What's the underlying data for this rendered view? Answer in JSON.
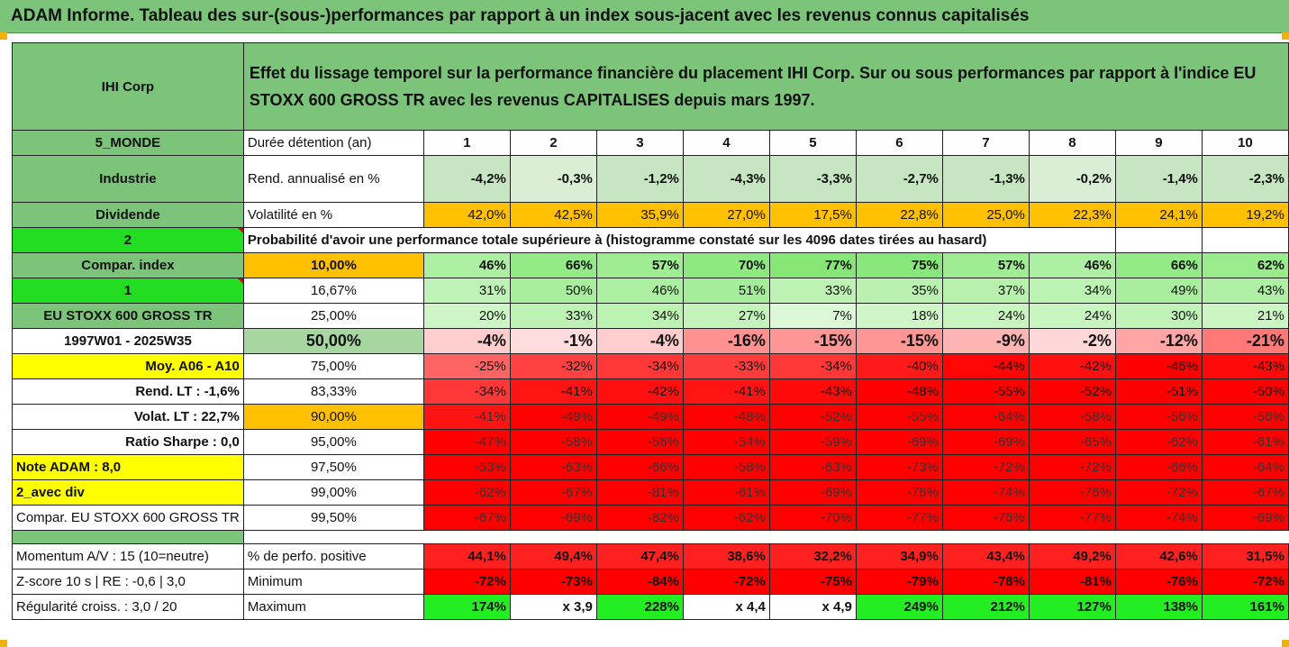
{
  "title": "ADAM Informe. Tableau des sur-(sous-)performances par rapport à un index sous-jacent avec les revenus connus capitalisés",
  "company": "IHI Corp",
  "description": "Effet du lissage temporel sur la performance financière du placement IHI Corp. Sur ou sous performances par rapport à l'indice EU STOXX 600 GROSS TR avec les revenus CAPITALISES depuis mars 1997.",
  "left": {
    "zone": "5_MONDE",
    "sector": "Industrie",
    "dividend": "Dividende",
    "selector1": "2",
    "compar": "Compar. index",
    "selector2": "1",
    "index_name": "EU STOXX 600 GROSS TR",
    "period": "1997W01 - 2025W35",
    "moy": "Moy. A06 - A10",
    "rend_lt": "Rend. LT :   -1,6%",
    "volat_lt": "Volat. LT :   22,7%",
    "sharpe": "Ratio Sharpe :   0,0",
    "note": "Note ADAM : 8,0",
    "avec_div": "2_avec div",
    "compar_full": "Compar. EU STOXX 600 GROSS TR",
    "momentum": "Momentum A/V : 15 (10=neutre)",
    "zscore": "Z-score 10 s  |  RE : -0,6  |  3,0",
    "regularite": "Régularité croiss. : 3,0 / 20"
  },
  "labels": {
    "duree": "Durée détention (an)",
    "rend": "Rend. annualisé en %",
    "vol": "Volatilité en %",
    "prob": "Probabilité d'avoir une performance totale supérieure à (histogramme constaté sur les 4096 dates tirées au hasard)",
    "positive": "% de perfo. positive",
    "minimum": "Minimum",
    "maximum": "Maximum"
  },
  "years": [
    "1",
    "2",
    "3",
    "4",
    "5",
    "6",
    "7",
    "8",
    "9",
    "10"
  ],
  "rend": [
    "-4,2%",
    "-0,3%",
    "-1,2%",
    "-4,3%",
    "-3,3%",
    "-2,7%",
    "-1,3%",
    "-0,2%",
    "-1,4%",
    "-2,3%"
  ],
  "vol": [
    "42,0%",
    "42,5%",
    "35,9%",
    "27,0%",
    "17,5%",
    "22,8%",
    "25,0%",
    "22,3%",
    "24,1%",
    "19,2%"
  ],
  "quantiles": [
    {
      "q": "10,00%",
      "v": [
        "46%",
        "66%",
        "57%",
        "70%",
        "77%",
        "75%",
        "57%",
        "46%",
        "66%",
        "62%"
      ]
    },
    {
      "q": "16,67%",
      "v": [
        "31%",
        "50%",
        "46%",
        "51%",
        "33%",
        "35%",
        "37%",
        "34%",
        "49%",
        "43%"
      ]
    },
    {
      "q": "25,00%",
      "v": [
        "20%",
        "33%",
        "34%",
        "27%",
        "7%",
        "18%",
        "24%",
        "24%",
        "30%",
        "21%"
      ]
    },
    {
      "q": "50,00%",
      "v": [
        "-4%",
        "-1%",
        "-4%",
        "-16%",
        "-15%",
        "-15%",
        "-9%",
        "-2%",
        "-12%",
        "-21%"
      ]
    },
    {
      "q": "75,00%",
      "v": [
        "-25%",
        "-32%",
        "-34%",
        "-33%",
        "-34%",
        "-40%",
        "-44%",
        "-42%",
        "-46%",
        "-43%"
      ]
    },
    {
      "q": "83,33%",
      "v": [
        "-34%",
        "-41%",
        "-42%",
        "-41%",
        "-43%",
        "-48%",
        "-55%",
        "-52%",
        "-51%",
        "-50%"
      ]
    },
    {
      "q": "90,00%",
      "v": [
        "-41%",
        "-49%",
        "-49%",
        "-48%",
        "-52%",
        "-55%",
        "-64%",
        "-58%",
        "-56%",
        "-56%"
      ]
    },
    {
      "q": "95,00%",
      "v": [
        "-47%",
        "-58%",
        "-56%",
        "-54%",
        "-59%",
        "-69%",
        "-69%",
        "-65%",
        "-62%",
        "-61%"
      ]
    },
    {
      "q": "97,50%",
      "v": [
        "-53%",
        "-63%",
        "-66%",
        "-58%",
        "-63%",
        "-73%",
        "-72%",
        "-72%",
        "-66%",
        "-64%"
      ]
    },
    {
      "q": "99,00%",
      "v": [
        "-62%",
        "-67%",
        "-81%",
        "-61%",
        "-69%",
        "-76%",
        "-74%",
        "-76%",
        "-72%",
        "-67%"
      ]
    },
    {
      "q": "99,50%",
      "v": [
        "-67%",
        "-69%",
        "-82%",
        "-62%",
        "-70%",
        "-77%",
        "-76%",
        "-77%",
        "-74%",
        "-69%"
      ]
    }
  ],
  "positive": [
    "44,1%",
    "49,4%",
    "47,4%",
    "38,6%",
    "32,2%",
    "34,9%",
    "43,4%",
    "49,2%",
    "42,6%",
    "31,5%"
  ],
  "minimum": [
    "-72%",
    "-73%",
    "-84%",
    "-72%",
    "-75%",
    "-79%",
    "-78%",
    "-81%",
    "-76%",
    "-72%"
  ],
  "maximum": [
    "174%",
    "x 3,9",
    "228%",
    "x 4,4",
    "x 4,9",
    "249%",
    "212%",
    "127%",
    "138%",
    "161%"
  ],
  "colors": {
    "header_green": "#7cc47a",
    "bright_green": "#22dd22",
    "orange": "#ffc000",
    "yellow": "#ffff00",
    "red": "#ff0000"
  }
}
